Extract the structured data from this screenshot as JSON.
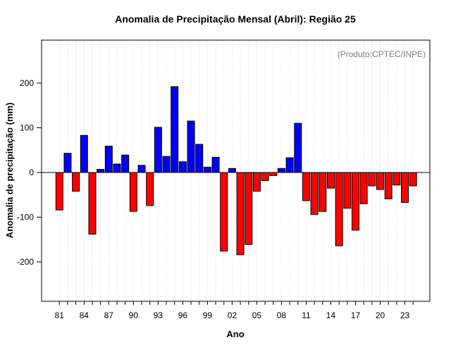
{
  "chart_data": {
    "type": "bar",
    "title": "Anomalia de Precipitação Mensal (Abril): Região 25",
    "xlabel": "Ano",
    "ylabel": "Anomalia de precipitação (mm)",
    "annotation": "(Produto:CPTEC/INPE)",
    "categories": [
      "1981",
      "1982",
      "1983",
      "1984",
      "1985",
      "1986",
      "1987",
      "1988",
      "1989",
      "1990",
      "1991",
      "1992",
      "1993",
      "1994",
      "1995",
      "1996",
      "1997",
      "1998",
      "1999",
      "2000",
      "2001",
      "2002",
      "2003",
      "2004",
      "2005",
      "2006",
      "2007",
      "2008",
      "2009",
      "2010",
      "2011",
      "2012",
      "2013",
      "2014",
      "2015",
      "2016",
      "2017",
      "2018",
      "2019",
      "2020",
      "2021",
      "2022",
      "2023",
      "2024"
    ],
    "values": [
      -84,
      43,
      -42,
      83,
      -138,
      7,
      59,
      19,
      39,
      -87,
      16,
      -74,
      101,
      36,
      192,
      24,
      115,
      63,
      12,
      34,
      -176,
      9,
      -184,
      -161,
      -42,
      -18,
      -7,
      9,
      33,
      110,
      -63,
      -94,
      -87,
      -35,
      -164,
      -80,
      -129,
      -70,
      -30,
      -38,
      -59,
      -28,
      -67,
      -30
    ],
    "x_tick_labels": [
      "81",
      "84",
      "87",
      "90",
      "93",
      "96",
      "99",
      "02",
      "05",
      "08",
      "11",
      "14",
      "17",
      "20",
      "23"
    ],
    "x_label_every": 3,
    "y_ticks": [
      -200,
      -100,
      0,
      100,
      200
    ],
    "ylim": [
      -290,
      295
    ],
    "grid": "vertical-dotted-per-year",
    "legend_position": "none",
    "colors": {
      "positive": "#0000ff",
      "negative": "#ff0000",
      "bar_border": "#000000",
      "gridline": "#d6d6d6",
      "annotation_text": "#7e7e7e"
    }
  }
}
